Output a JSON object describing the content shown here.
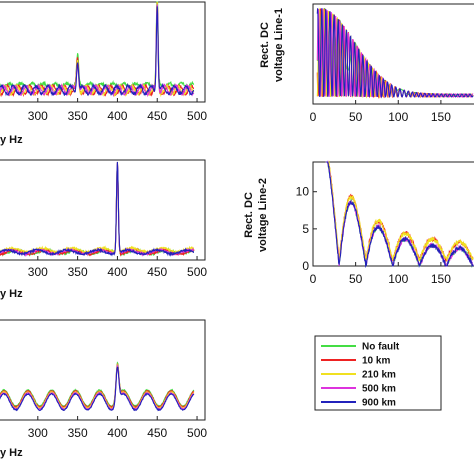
{
  "chart_data": [
    {
      "id": "left-top",
      "type": "line",
      "xlabel": "y Hz",
      "ylabel": "",
      "xlim": [
        250,
        510
      ],
      "ylim": [
        0,
        1
      ],
      "xticks": [
        300,
        350,
        400,
        450,
        500
      ],
      "tick_labels": [
        "300",
        "350",
        "400",
        "450",
        "500"
      ],
      "description_values": {
        "baseline": 0.12,
        "peaks": [
          {
            "x": 350,
            "y": 0.38
          },
          {
            "x": 450,
            "y": 1.0
          }
        ]
      }
    },
    {
      "id": "left-middle",
      "type": "line",
      "xlabel": "y Hz",
      "ylabel": "",
      "xlim": [
        250,
        510
      ],
      "ylim": [
        0,
        1
      ],
      "xticks": [
        300,
        350,
        400,
        450,
        500
      ],
      "tick_labels": [
        "300",
        "350",
        "400",
        "450",
        "500"
      ],
      "description_values": {
        "baseline": 0.06,
        "peaks": [
          {
            "x": 400,
            "y": 0.98
          }
        ]
      }
    },
    {
      "id": "left-bottom",
      "type": "line",
      "xlabel": "y Hz",
      "ylabel": "",
      "xlim": [
        250,
        510
      ],
      "ylim": [
        0,
        1
      ],
      "xticks": [
        300,
        350,
        400,
        450,
        500
      ],
      "tick_labels": [
        "300",
        "350",
        "400",
        "450",
        "500"
      ],
      "description_values": {
        "oscillation_period_hz": 30,
        "peaks": [
          {
            "x": 400,
            "y": 0.62
          }
        ]
      }
    },
    {
      "id": "right-top",
      "type": "line",
      "xlabel": "",
      "ylabel": "Rect. DC voltage Line-1",
      "ylabel_lines": [
        "Rect. DC",
        "voltage Line-1"
      ],
      "xlim": [
        0,
        190
      ],
      "ylim": [
        0,
        14
      ],
      "xticks": [
        0,
        50,
        100,
        150
      ],
      "tick_labels": [
        "0",
        "50",
        "100",
        "150"
      ],
      "yticks": [],
      "ytick_labels": []
    },
    {
      "id": "right-bottom",
      "type": "line",
      "xlabel": "",
      "ylabel": "Rect. DC voltage Line-2",
      "ylabel_lines": [
        "Rect. DC",
        "voltage Line-2"
      ],
      "xlim": [
        0,
        190
      ],
      "ylim": [
        0,
        14
      ],
      "xticks": [
        0,
        50,
        100,
        150
      ],
      "tick_labels": [
        "0",
        "50",
        "100",
        "150"
      ],
      "yticks": [
        0,
        5,
        10
      ],
      "ytick_labels": [
        "0",
        "5",
        "10"
      ]
    }
  ],
  "legend": {
    "entries": [
      {
        "label": "No fault",
        "color": "#44dd44"
      },
      {
        "label": "10 km",
        "color": "#ee2222"
      },
      {
        "label": "210 km",
        "color": "#f0e020"
      },
      {
        "label": "500 km",
        "color": "#dd33dd"
      },
      {
        "label": "900 km",
        "color": "#2222bb"
      }
    ]
  }
}
